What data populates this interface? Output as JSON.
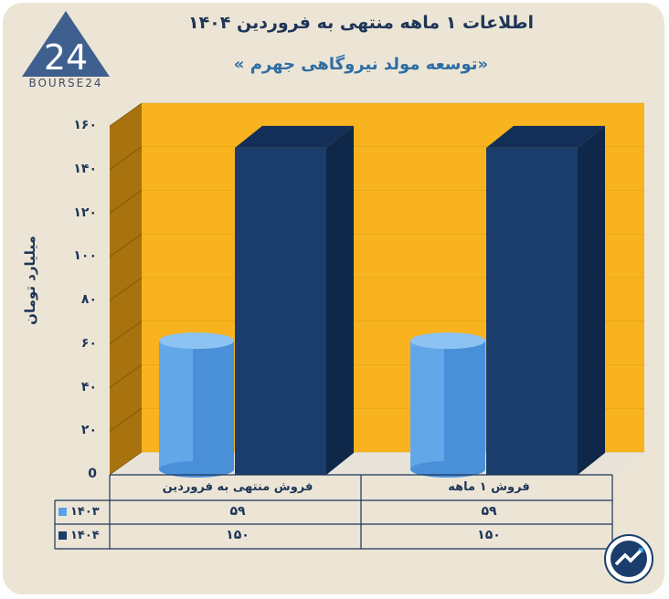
{
  "header": {
    "title": "اطلاعات ۱ ماهه منتهی به فروردین ۱۴۰۴",
    "subtitle": "«توسعه مولد نیروگاهی جهرم »",
    "logo_text": "BOURSE24"
  },
  "chart_data": {
    "type": "bar",
    "title": "اطلاعات ۱ ماهه منتهی به فروردین ۱۴۰۴",
    "subtitle": "«توسعه مولد نیروگاهی جهرم »",
    "categories": [
      "فروش منتهی به  فروردین",
      "فروش ۱ ماهه"
    ],
    "series": [
      {
        "name": "۱۴۰۳",
        "values": [
          59,
          59
        ],
        "display": [
          "۵۹",
          "۵۹"
        ],
        "color": "#5aa2e6"
      },
      {
        "name": "۱۴۰۴",
        "values": [
          150,
          150
        ],
        "display": [
          "۱۵۰",
          "۱۵۰"
        ],
        "color": "#1a3d6b"
      }
    ],
    "ylabel": "میلیارد تومان",
    "ylim": [
      0,
      160
    ],
    "yticks": [
      0,
      20,
      40,
      60,
      80,
      100,
      120,
      140,
      160
    ],
    "ytick_labels": [
      "0",
      "۲۰",
      "۴۰",
      "۶۰",
      "۸۰",
      "۱۰۰",
      "۱۲۰",
      "۱۴۰",
      "۱۶۰"
    ],
    "grid": true,
    "legend": "data-table",
    "background_color": "#f8b31e"
  }
}
